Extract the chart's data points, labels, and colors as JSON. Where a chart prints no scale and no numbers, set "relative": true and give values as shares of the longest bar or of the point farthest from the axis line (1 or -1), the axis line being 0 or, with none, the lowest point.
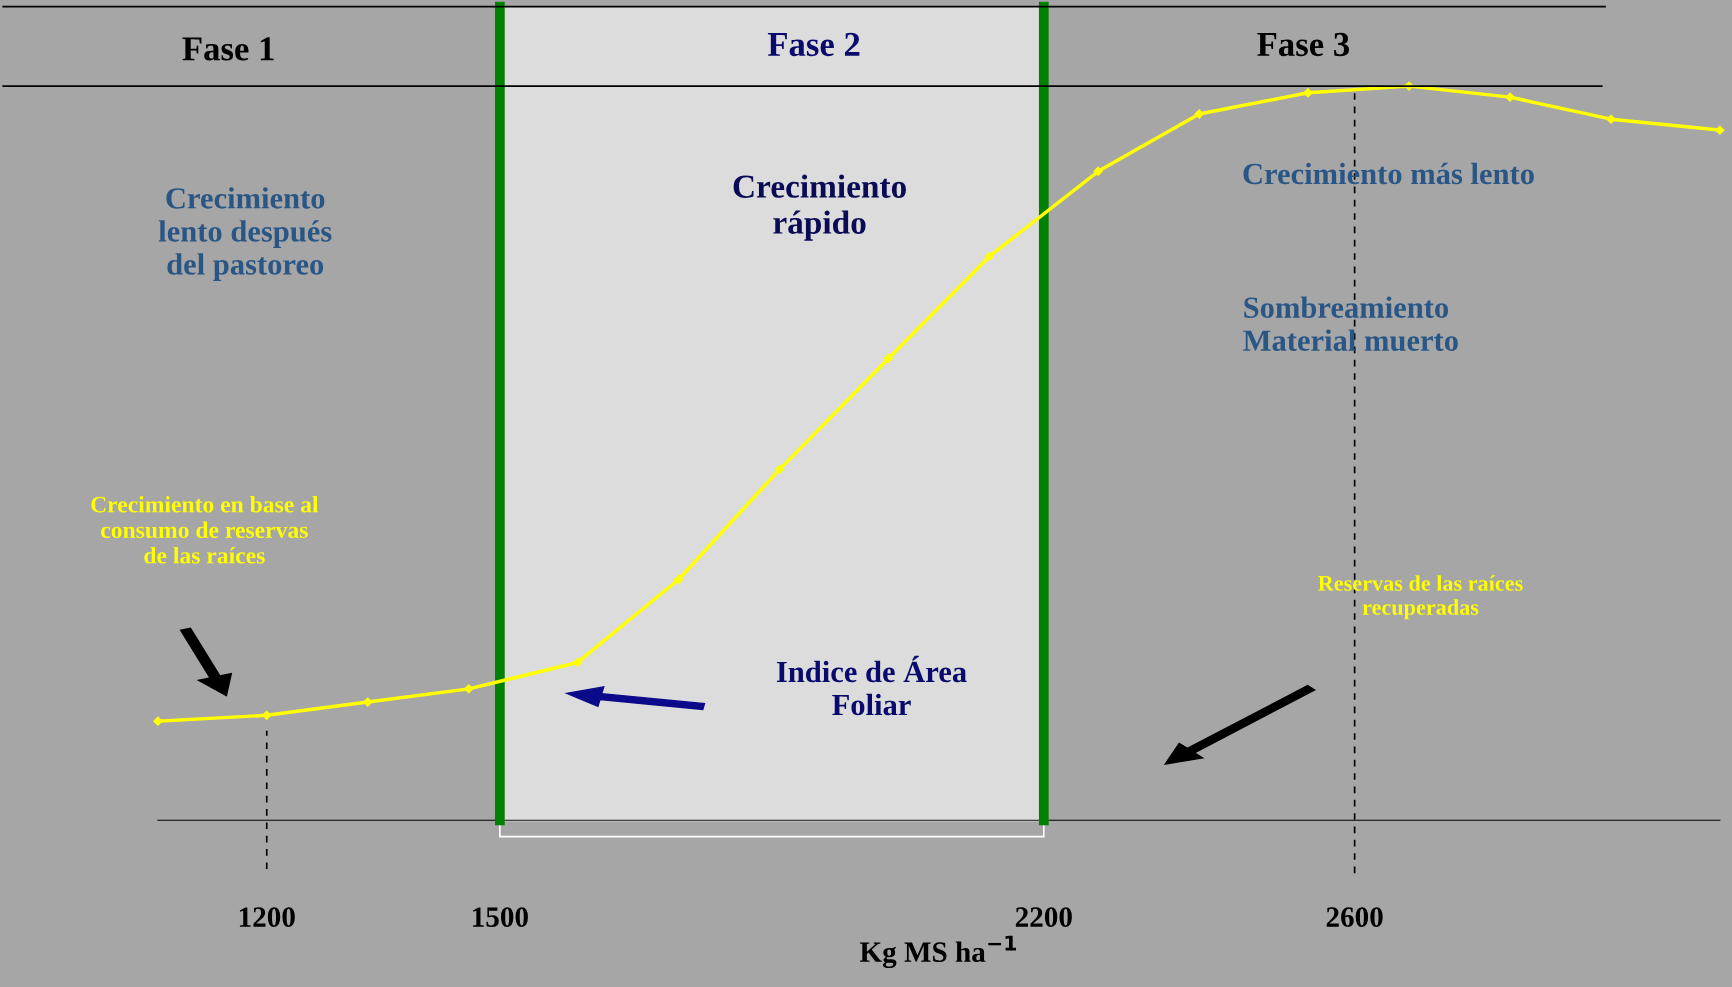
{
  "chart_data": {
    "type": "line",
    "relative": true,
    "x": [
      1060,
      1200,
      1330,
      1460,
      1600,
      1730,
      1860,
      2000,
      2130,
      2270,
      2400,
      2540,
      2670,
      2800,
      2930,
      3070
    ],
    "series": [
      {
        "color": "#ffff00",
        "values": [
          0.135,
          0.143,
          0.161,
          0.179,
          0.215,
          0.328,
          0.478,
          0.629,
          0.768,
          0.884,
          0.962,
          0.991,
          1.0,
          0.985,
          0.955,
          0.94
        ]
      }
    ],
    "xlim": [
      1060,
      3070
    ],
    "xticks": [
      1200,
      1500,
      2200,
      2600
    ],
    "xlabel": "Kg MS ha$^{−1}$",
    "marker": "diamond",
    "line_style": "solid",
    "grid": false,
    "legend": false,
    "tick_labels": "x",
    "bands": [
      {
        "axis": "x",
        "from": 1500,
        "to": 2200,
        "color": "#dcdcdc"
      }
    ],
    "ref_lines": [
      {
        "axis": "x",
        "value": 1500,
        "color": "#008000",
        "line_style": "solid"
      },
      {
        "axis": "x",
        "value": 2200,
        "color": "#008000",
        "line_style": "solid"
      },
      {
        "axis": "x",
        "value": 1200,
        "color": "#000000",
        "line_style": "dashed"
      },
      {
        "axis": "x",
        "value": 2600,
        "color": "#000000",
        "line_style": "dashed"
      }
    ],
    "annotations": [
      "Fase 1",
      "Fase 2",
      "Fase 3",
      "Crecimiento\nlento después\ndel pastoreo",
      "Crecimiento\nrápido",
      "Crecimiento más lento",
      "Sombreamiento\nMaterial muerto",
      "Crecimiento en base al\nconsumo de reservas\nde las raíces",
      "Reservas de las raíces\nrecuperadas",
      "Indice de Área\nFoliar"
    ]
  }
}
